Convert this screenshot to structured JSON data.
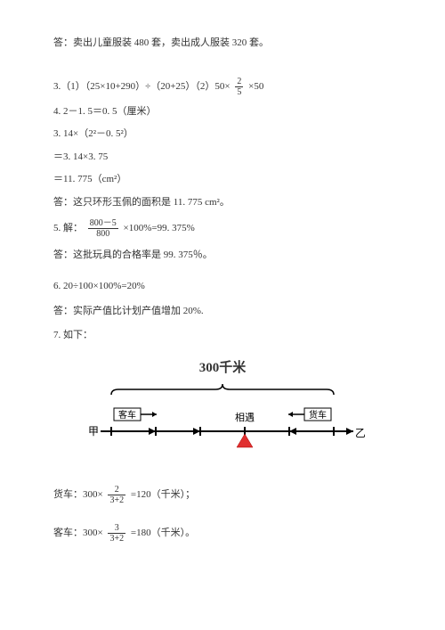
{
  "answer1": "答：卖出儿童服装 480 套，卖出成人服装 320 套。",
  "q3_prefix": "3.（1）（25×10+290）÷（20+25）（2）50×",
  "q3_frac_num": "2",
  "q3_frac_den": "5",
  "q3_suffix": "×50",
  "q4_line1": "4. 2－1. 5＝0. 5（厘米）",
  "q4_line2": "3. 14×（2²－0. 5²）",
  "q4_line3": "＝3. 14×3. 75",
  "q4_line4": "＝11. 775（cm²）",
  "q4_answer": "答：这只环形玉佩的面积是 11. 775  cm²。",
  "q5_prefix": "5. 解：",
  "q5_frac_num": "800－5",
  "q5_frac_den": "800",
  "q5_suffix": "×100%=99. 375%",
  "q5_answer": "答：这批玩具的合格率是 99. 375％。",
  "q6_line": "6. 20÷100×100%=20%",
  "q6_answer": "答：实际产值比计划产值增加 20%.",
  "q7_label": "7. 如下：",
  "diagram": {
    "title": "300千米",
    "left_label": "客车",
    "right_label": "货车",
    "jia": "甲",
    "yi": "乙",
    "meet": "相遇",
    "ticks": 6,
    "meet_index": 3,
    "colors": {
      "line": "#000000",
      "triangle": "#e03030",
      "text": "#000000"
    }
  },
  "truck_prefix": "货车：300×",
  "truck_frac_num": "2",
  "truck_frac_den": "3+2",
  "truck_suffix": "=120（千米）；",
  "bus_prefix": "客车：300×",
  "bus_frac_num": "3",
  "bus_frac_den": "3+2",
  "bus_suffix": "=180（千米）。"
}
